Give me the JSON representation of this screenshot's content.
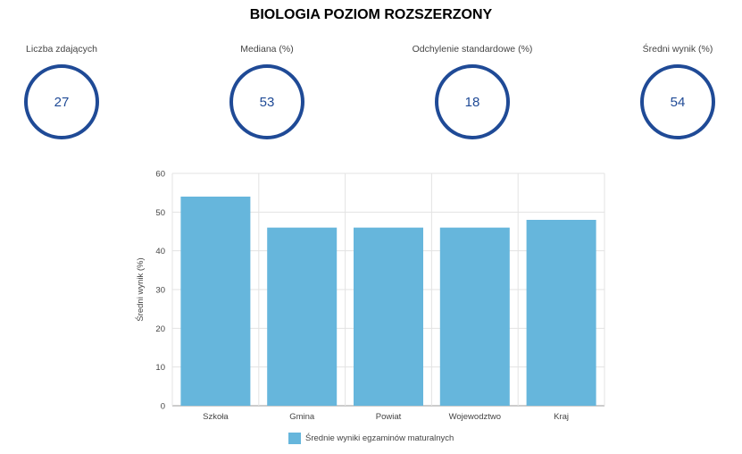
{
  "page": {
    "title": "BIOLOGIA POZIOM ROZSZERZONY"
  },
  "stats": [
    {
      "label": "Liczba zdających",
      "value": "27"
    },
    {
      "label": "Mediana (%)",
      "value": "53"
    },
    {
      "label": "Odchylenie standardowe (%)",
      "value": "18"
    },
    {
      "label": "Średni wynik (%)",
      "value": "54"
    }
  ],
  "colors": {
    "accent": "#1f4a96",
    "bar": "#66b6dc",
    "grid": "#e3e3e3"
  },
  "chart_data": {
    "type": "bar",
    "categories": [
      "Szkoła",
      "Gmina",
      "Powiat",
      "Wojewodztwo",
      "Kraj"
    ],
    "series": [
      {
        "name": "Średnie wyniki egzaminów maturalnych",
        "values": [
          54,
          46,
          46,
          46,
          48
        ]
      }
    ],
    "ylabel": "Średni wynik (%)",
    "xlabel": "",
    "ylim": [
      0,
      60
    ],
    "yticks": [
      0,
      10,
      20,
      30,
      40,
      50,
      60
    ],
    "grid": true,
    "legend": "bottom"
  }
}
